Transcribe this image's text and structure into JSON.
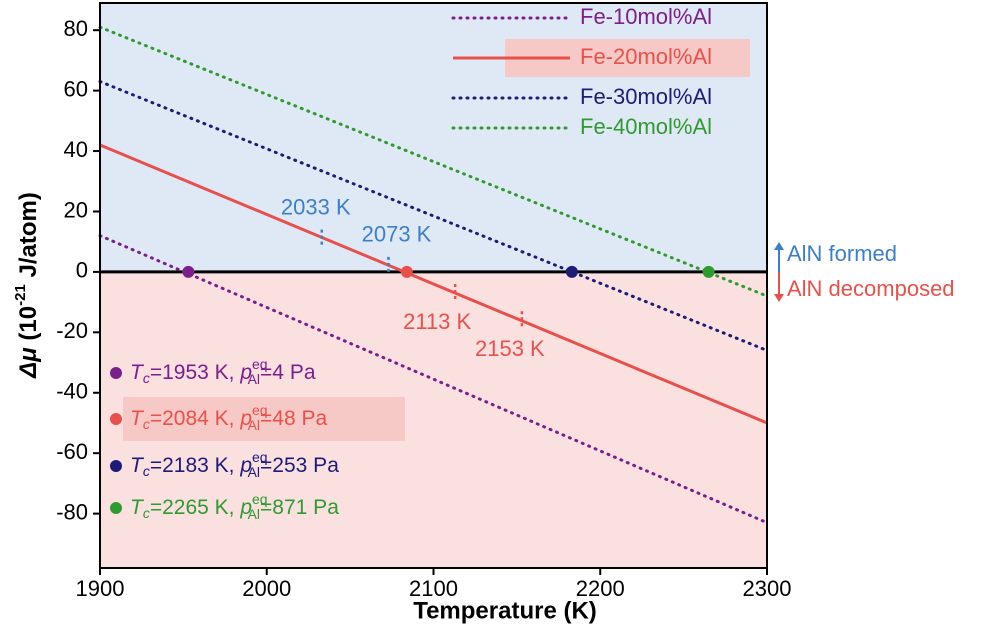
{
  "chart_data": {
    "type": "line",
    "x_label": "Temperature (K)",
    "y_label": {
      "symbol": "Δμ",
      "open": " (10",
      "exp": "-21",
      "close": " J/atom)"
    },
    "xlim": [
      1900,
      2300
    ],
    "xticks": [
      1900,
      2000,
      2100,
      2200,
      2300
    ],
    "ylim": [
      -98,
      89
    ],
    "yticks": [
      -80,
      -60,
      -40,
      -20,
      0,
      20,
      40,
      60,
      80
    ],
    "upper_color": "#dfe9f6",
    "lower_color": "#fbe0e0",
    "series": [
      {
        "name": "Fe-10mol%Al",
        "color": "#7a1f8c",
        "style": "dotted",
        "x": [
          1900,
          2300
        ],
        "values": [
          12,
          -83
        ],
        "tc_point": [
          1953,
          0
        ],
        "tc_label": {
          "t": "T",
          "t_sub": "c",
          "t_text": "=1953 K, ",
          "p": "p",
          "p_sup": "eq",
          "p_sub": "Al",
          "p_text": "=4 Pa"
        }
      },
      {
        "name": "Fe-20mol%Al",
        "color": "#e8514b",
        "style": "solid",
        "highlight": true,
        "x": [
          1900,
          2300
        ],
        "values": [
          42,
          -50
        ],
        "tc_point": [
          2084,
          0
        ],
        "tc_label": {
          "t": "T",
          "t_sub": "c",
          "t_text": "=2084 K, ",
          "p": "p",
          "p_sup": "eq",
          "p_sub": "Al",
          "p_text": "=48 Pa"
        }
      },
      {
        "name": "Fe-30mol%Al",
        "color": "#1c1c78",
        "style": "dotted",
        "x": [
          1900,
          2300
        ],
        "values": [
          63,
          -26
        ],
        "tc_point": [
          2183,
          0
        ],
        "tc_label": {
          "t": "T",
          "t_sub": "c",
          "t_text": "=2183 K, ",
          "p": "p",
          "p_sup": "eq",
          "p_sub": "Al",
          "p_text": "=253 Pa"
        }
      },
      {
        "name": "Fe-40mol%Al",
        "color": "#2f9a2f",
        "style": "dotted",
        "x": [
          1900,
          2300
        ],
        "values": [
          81,
          -8
        ],
        "tc_point": [
          2265,
          0
        ],
        "tc_label": {
          "t": "T",
          "t_sub": "c",
          "t_text": "=2265 K, ",
          "p": "p",
          "p_sup": "eq",
          "p_sub": "Al",
          "p_text": "=871 Pa"
        }
      }
    ],
    "markers": [
      {
        "label": "2033 K",
        "x": 2033,
        "y": 11,
        "color": "#3b7fc8"
      },
      {
        "label": "2073 K",
        "x": 2073,
        "y": 2,
        "color": "#3b7fc8"
      },
      {
        "label": "2113 K",
        "x": 2113,
        "y": -7,
        "color": "#e8514b"
      },
      {
        "label": "2153 K",
        "x": 2153,
        "y": -16,
        "color": "#e8514b"
      }
    ],
    "side_labels": [
      {
        "text": "AlN formed",
        "color": "#3b7fc8"
      },
      {
        "text": "AlN decomposed",
        "color": "#e8514b"
      }
    ]
  }
}
